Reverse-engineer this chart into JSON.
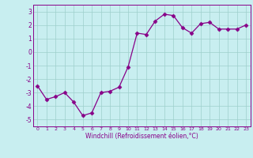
{
  "x": [
    0,
    1,
    2,
    3,
    4,
    5,
    6,
    7,
    8,
    9,
    10,
    11,
    12,
    13,
    14,
    15,
    16,
    17,
    18,
    19,
    20,
    21,
    22,
    23
  ],
  "y": [
    -2.5,
    -3.5,
    -3.3,
    -3.0,
    -3.7,
    -4.7,
    -4.5,
    -3.0,
    -2.9,
    -2.6,
    -1.1,
    1.4,
    1.3,
    2.3,
    2.8,
    2.7,
    1.8,
    1.4,
    2.1,
    2.2,
    1.7,
    1.7,
    1.7,
    2.0
  ],
  "xlim": [
    -0.5,
    23.5
  ],
  "ylim": [
    -5.5,
    3.5
  ],
  "yticks": [
    -5,
    -4,
    -3,
    -2,
    -1,
    0,
    1,
    2,
    3
  ],
  "xticks": [
    0,
    1,
    2,
    3,
    4,
    5,
    6,
    7,
    8,
    9,
    10,
    11,
    12,
    13,
    14,
    15,
    16,
    17,
    18,
    19,
    20,
    21,
    22,
    23
  ],
  "xlabel": "Windchill (Refroidissement éolien,°C)",
  "line_color": "#880088",
  "marker": "D",
  "marker_size": 2.5,
  "bg_color": "#c8eef0",
  "grid_color": "#9ecfcc",
  "tick_color": "#880088",
  "label_color": "#880088",
  "spine_color": "#880088"
}
